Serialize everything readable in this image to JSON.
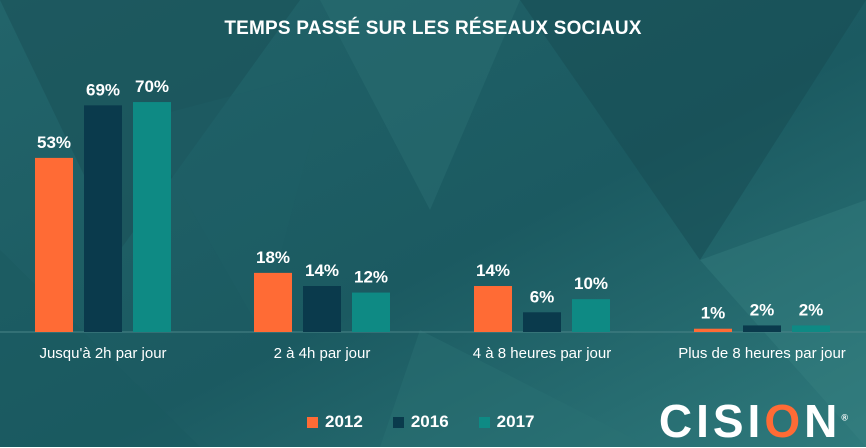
{
  "colors": {
    "series_2012": "#ff6b35",
    "series_2016": "#0a3a4c",
    "series_2017": "#0e8a84",
    "background": "#1c5a60",
    "text": "#ffffff"
  },
  "chart_data": {
    "type": "bar",
    "title": "TEMPS PASSÉ SUR LES RÉSEAUX SOCIAUX",
    "xlabel": "",
    "ylabel": "",
    "ylim": [
      0,
      100
    ],
    "grid": false,
    "legend": "bottom",
    "categories": [
      "Jusqu'à 2h par jour",
      "2 à 4h par jour",
      "4 à 8 heures par jour",
      "Plus de 8 heures par jour"
    ],
    "series": [
      {
        "name": "2012",
        "values": [
          53,
          18,
          14,
          1
        ],
        "labels": [
          "53%",
          "18%",
          "14%",
          "1%"
        ]
      },
      {
        "name": "2016",
        "values": [
          69,
          14,
          6,
          2
        ],
        "labels": [
          "69%",
          "14%",
          "6%",
          "2%"
        ]
      },
      {
        "name": "2017",
        "values": [
          70,
          12,
          10,
          2
        ],
        "labels": [
          "70%",
          "12%",
          "10%",
          "2%"
        ]
      }
    ]
  },
  "logo": {
    "text_before": "CISI",
    "text_o": "O",
    "text_after": "N",
    "mark": "®"
  }
}
